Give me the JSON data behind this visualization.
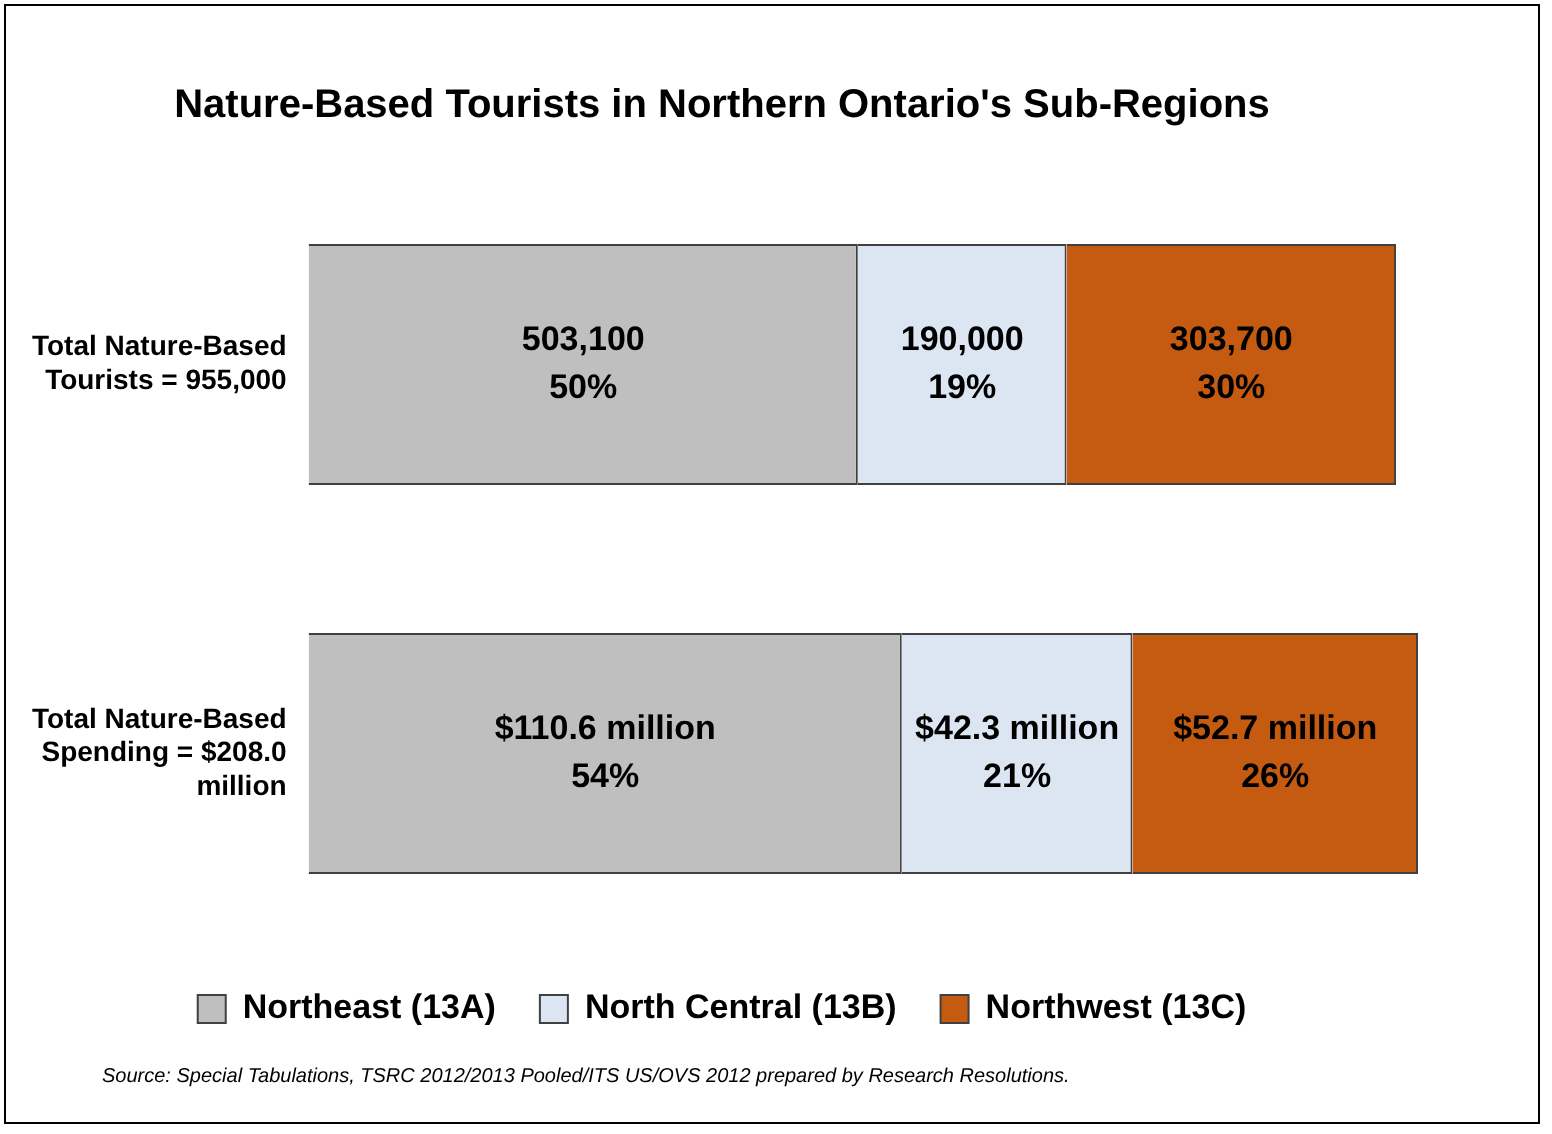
{
  "chart_data": {
    "type": "bar",
    "orientation": "horizontal",
    "stacked": true,
    "title": "Nature-Based Tourists in Northern Ontario's Sub-Regions",
    "categories": [
      "Total Nature-Based Tourists = 955,000",
      "Total Nature-Based Spending = $208.0 million"
    ],
    "series": [
      {
        "name": "Northeast (13A)",
        "color": "#bfbfbf",
        "values": [
          50,
          54
        ],
        "value_labels": [
          "503,100\n50%",
          "$110.6 million\n54%"
        ]
      },
      {
        "name": "North Central (13B)",
        "color": "#dce6f2",
        "values": [
          19,
          21
        ],
        "value_labels": [
          "190,000\n19%",
          "$42.3 million\n21%"
        ]
      },
      {
        "name": "Northwest (13C)",
        "color": "#c55a11",
        "values": [
          30,
          26
        ],
        "value_labels": [
          "303,700\n30%",
          "$52.7 million\n26%"
        ]
      }
    ],
    "legend": "bottom",
    "annotations": [
      "Source:  Special Tabulations, TSRC 2012/2013 Pooled/ITS US/OVS 2012 prepared by Research Resolutions."
    ]
  }
}
